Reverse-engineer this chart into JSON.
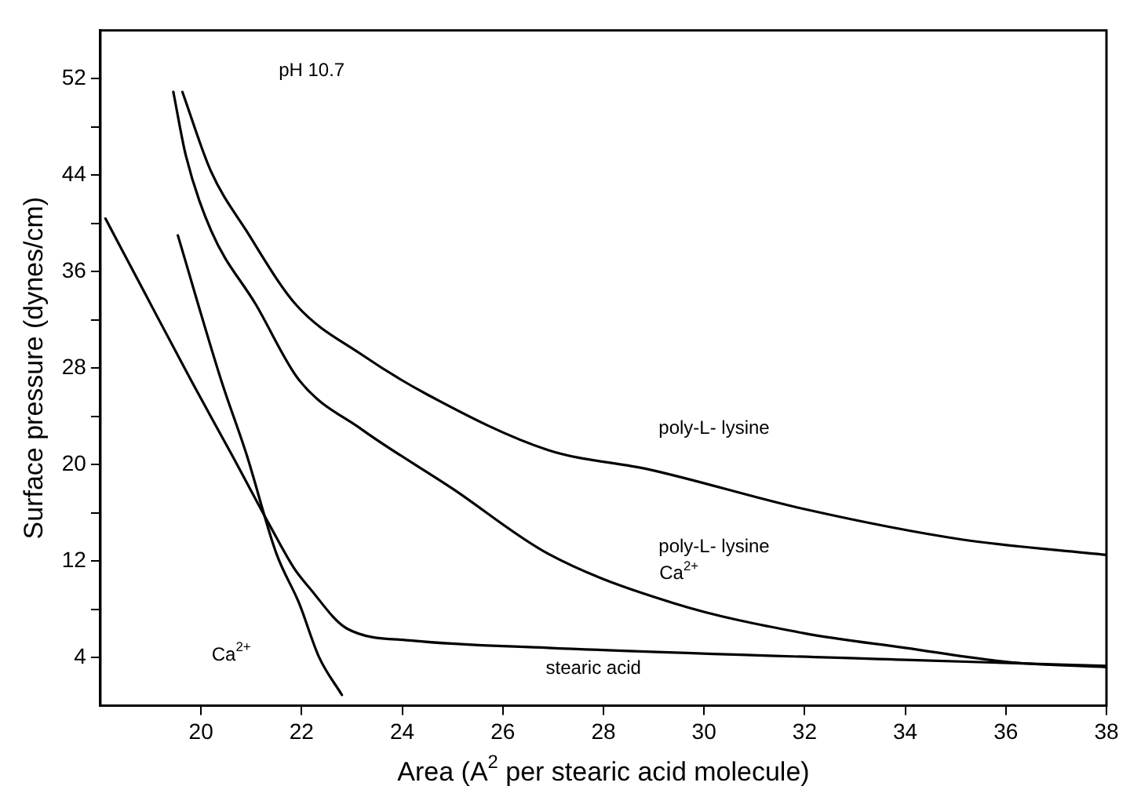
{
  "chart_data": {
    "type": "line",
    "xlabel": "Area (A$^{2}$ per stearic acid molecule)",
    "ylabel": "Surface pressure (dynes/cm)",
    "xlim": [
      18,
      38
    ],
    "xticks": [
      20,
      22,
      24,
      26,
      28,
      30,
      32,
      34,
      36,
      38
    ],
    "ylim": [
      0,
      56
    ],
    "yticks": [
      4,
      {
        "value": 8,
        "label": null
      },
      12,
      {
        "value": 16,
        "label": null
      },
      20,
      {
        "value": 24,
        "label": null
      },
      28,
      {
        "value": 32,
        "label": null
      },
      36,
      {
        "value": 40,
        "label": null
      },
      44,
      {
        "value": 48,
        "label": null
      },
      52
    ],
    "grid": false,
    "legend": false,
    "marker": "none",
    "line_style": "solid",
    "series": [
      {
        "color": "#000000",
        "x": [
          18.1,
          18.86,
          19.8,
          20.6,
          21.4,
          21.85,
          22.15,
          22.9,
          24.2,
          26.9,
          34.0,
          38
        ],
        "values": [
          40.4,
          34.4,
          27,
          20.9,
          14.7,
          11.4,
          9.8,
          6.4,
          5.4,
          4.8,
          3.8,
          3.3
        ]
      },
      {
        "color": "#000000",
        "x": [
          19.54,
          20.4,
          20.9,
          21.5,
          21.95,
          22.35,
          22.8
        ],
        "values": [
          39.0,
          27,
          20.9,
          12.6,
          8.5,
          4.0,
          0.9
        ]
      },
      {
        "color": "#000000",
        "x": [
          19.45,
          19.7,
          20.2,
          21.1,
          21.95,
          23.2,
          25.0,
          26.9,
          29.4,
          32.0,
          34.0,
          36.1,
          38
        ],
        "values": [
          50.9,
          45.6,
          39.4,
          33.2,
          27,
          22.9,
          18.0,
          12.6,
          8.5,
          6.0,
          4.8,
          3.6,
          3.2
        ]
      },
      {
        "color": "#000000",
        "x": [
          19.63,
          20.2,
          20.9,
          21.9,
          23.2,
          24.5,
          26.9,
          28.9,
          32.0,
          35.1,
          38
        ],
        "values": [
          50.9,
          44.3,
          39.4,
          33.2,
          29.1,
          25.8,
          21.2,
          19.6,
          16.3,
          13.8,
          12.5
        ]
      }
    ],
    "annotations": [
      "pH 10.7",
      "poly-L- lysine",
      "poly-L- lysine",
      "Ca$^{2+}$",
      "stearic acid",
      "Ca$^{2+}$"
    ]
  }
}
